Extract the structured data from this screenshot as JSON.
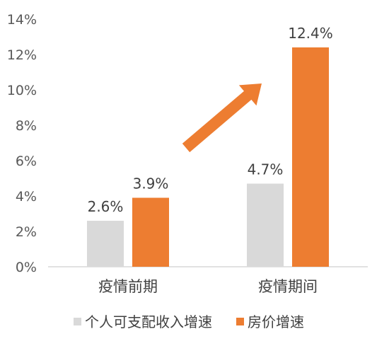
{
  "chart_data": {
    "type": "bar",
    "categories": [
      "疫情前期",
      "疫情期间"
    ],
    "series": [
      {
        "name": "个人可支配收入增速",
        "values": [
          2.6,
          4.7
        ],
        "labels": [
          "2.6%",
          "4.7%"
        ],
        "color": "#d9d9d9"
      },
      {
        "name": "房价增速",
        "values": [
          3.9,
          12.4
        ],
        "labels": [
          "3.9%",
          "12.4%"
        ],
        "color": "#ed7d31"
      }
    ],
    "ylim": [
      0,
      14
    ],
    "yticks": [
      "0%",
      "2%",
      "4%",
      "6%",
      "8%",
      "10%",
      "12%",
      "14%"
    ],
    "grid": false,
    "legend_position": "bottom",
    "annotation": {
      "type": "arrow",
      "color": "#ed7d31",
      "direction": "up-right"
    }
  }
}
